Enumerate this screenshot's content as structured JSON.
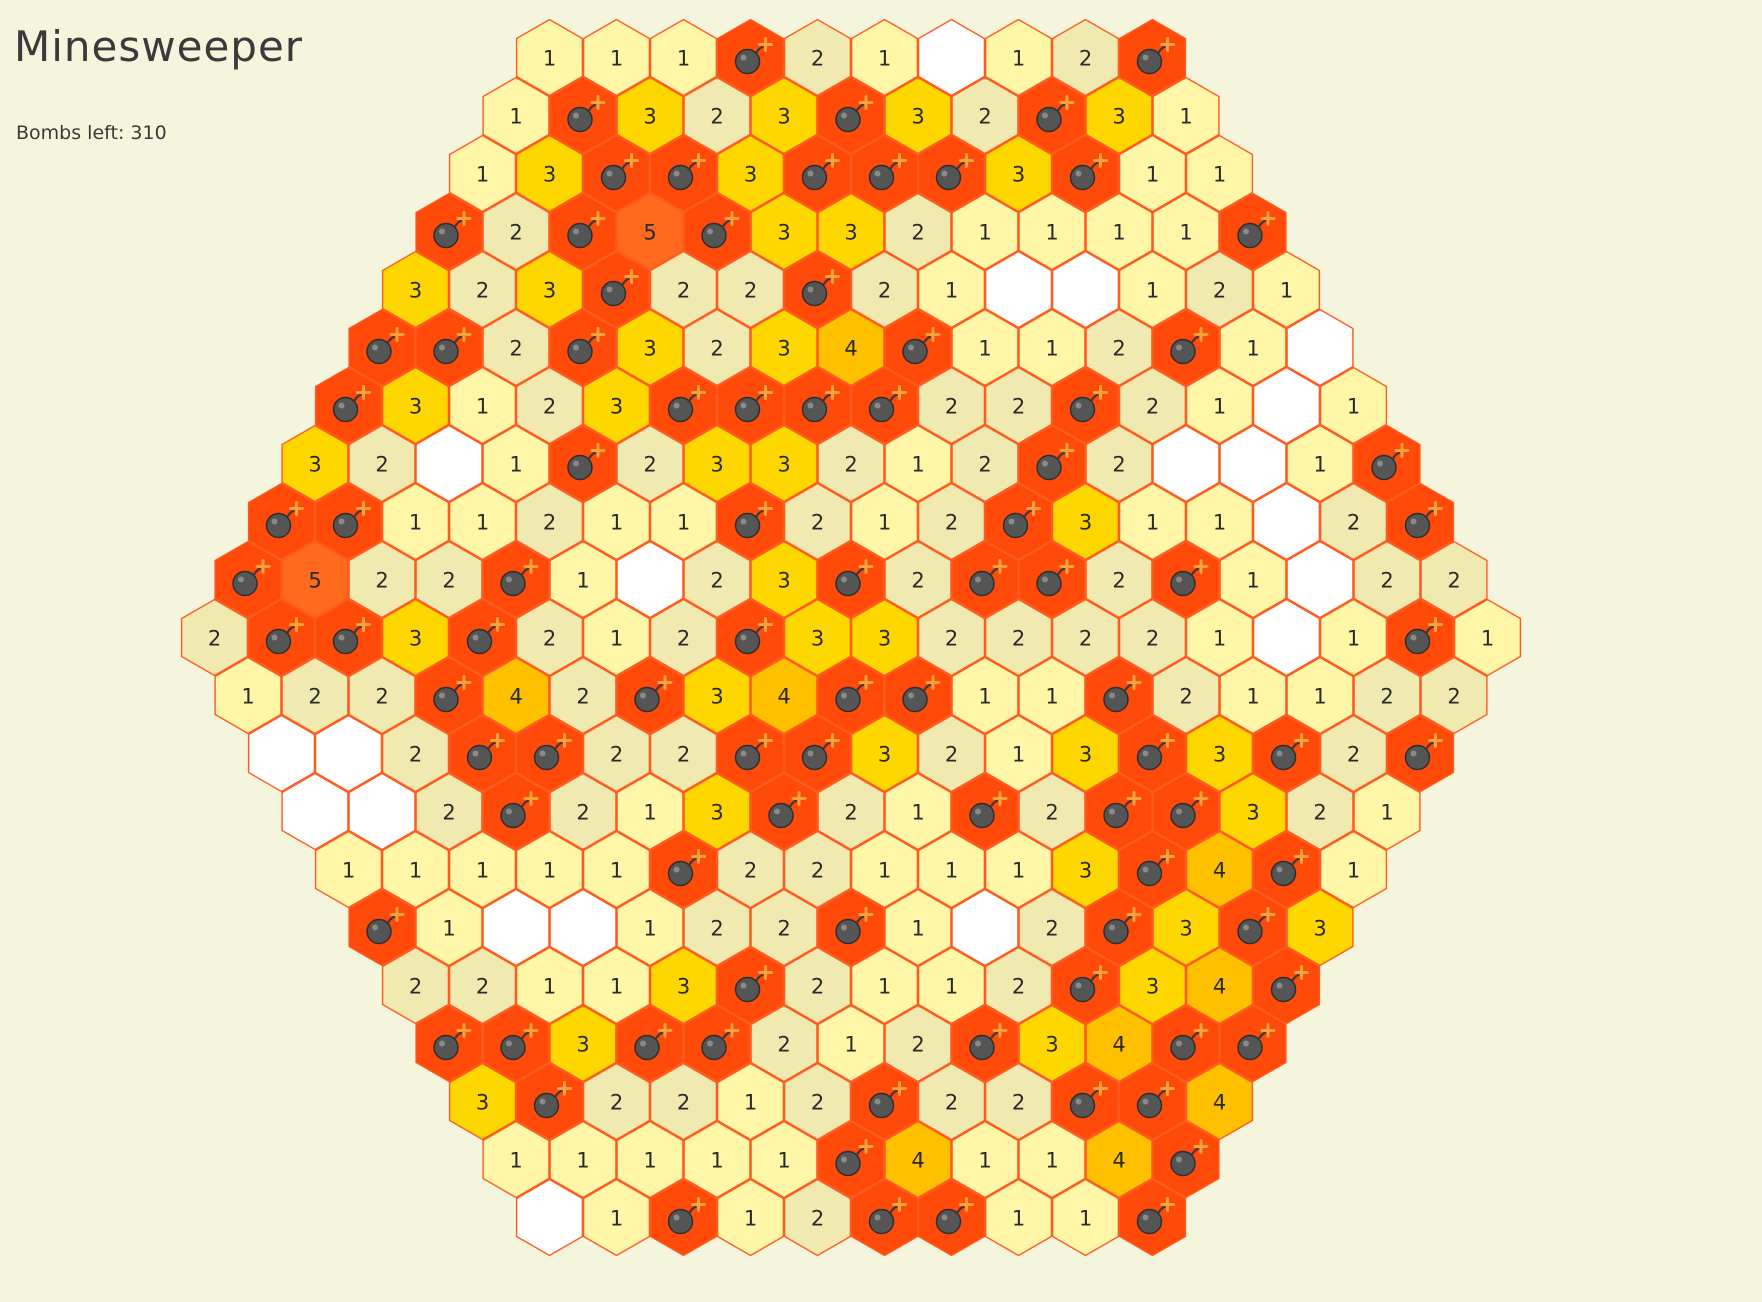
{
  "title": "Minesweeper",
  "status": {
    "bombs_left_label": "Bombs left:",
    "bombs_left_value": "310"
  },
  "colors": {
    "background": "#f5f4dc",
    "mine": "#ff4a0a",
    "border": "#ff5a1f",
    "empty": "#ffffff",
    "n1": "#fff6a8",
    "n2": "#f1eab0",
    "n3": "#ffd700",
    "n4": "#ffc000",
    "n5": "#ff6a1f",
    "bomb_body": "#555555"
  },
  "board": {
    "rows": [
      {
        "start": 9,
        "cells": [
          "1",
          "1",
          "1",
          "M",
          "2",
          "1",
          "0",
          "1",
          "2",
          "M"
        ]
      },
      {
        "start": 8,
        "cells": [
          "1",
          "M",
          "3",
          "2",
          "3",
          "M",
          "3",
          "2",
          "M",
          "3",
          "1"
        ]
      },
      {
        "start": 7,
        "cells": [
          "1",
          "3",
          "M",
          "M",
          "3",
          "M",
          "M",
          "M",
          "3",
          "M",
          "1",
          "1"
        ]
      },
      {
        "start": 6,
        "cells": [
          "M",
          "2",
          "M",
          "5",
          "M",
          "3",
          "3",
          "2",
          "1",
          "1",
          "1",
          "1",
          "M"
        ]
      },
      {
        "start": 5,
        "cells": [
          "3",
          "2",
          "3",
          "M",
          "2",
          "2",
          "M",
          "2",
          "1",
          "0",
          "0",
          "1",
          "2",
          "1"
        ]
      },
      {
        "start": 4,
        "cells": [
          "M",
          "M",
          "2",
          "M",
          "3",
          "2",
          "3",
          "4",
          "M",
          "1",
          "1",
          "2",
          "M",
          "1",
          "0"
        ]
      },
      {
        "start": 3,
        "cells": [
          "M",
          "3",
          "1",
          "2",
          "3",
          "M",
          "M",
          "M",
          "M",
          "2",
          "2",
          "M",
          "2",
          "1",
          "0",
          "1"
        ]
      },
      {
        "start": 2,
        "cells": [
          "3",
          "2",
          "0",
          "1",
          "M",
          "2",
          "3",
          "3",
          "2",
          "1",
          "2",
          "M",
          "2",
          "0",
          "0",
          "1",
          "M"
        ]
      },
      {
        "start": 1,
        "cells": [
          "M",
          "M",
          "1",
          "1",
          "2",
          "1",
          "1",
          "M",
          "2",
          "1",
          "2",
          "M",
          "3",
          "1",
          "1",
          "0",
          "2",
          "M"
        ]
      },
      {
        "start": 0,
        "cells": [
          "M",
          "5",
          "2",
          "2",
          "M",
          "1",
          "0",
          "2",
          "3",
          "M",
          "2",
          "M",
          "M",
          "2",
          "M",
          "1",
          "0",
          "2",
          "2"
        ]
      },
      {
        "start": -1,
        "cells": [
          "2",
          "M",
          "M",
          "3",
          "M",
          "2",
          "1",
          "2",
          "M",
          "3",
          "3",
          "2",
          "2",
          "2",
          "2",
          "1",
          "0",
          "1",
          "M",
          "1"
        ]
      },
      {
        "start": 0,
        "cells": [
          "1",
          "2",
          "2",
          "M",
          "4",
          "2",
          "M",
          "3",
          "4",
          "M",
          "M",
          "1",
          "1",
          "M",
          "2",
          "1",
          "1",
          "2",
          "2"
        ]
      },
      {
        "start": 1,
        "cells": [
          "0",
          "0",
          "2",
          "M",
          "M",
          "2",
          "2",
          "M",
          "M",
          "3",
          "2",
          "1",
          "3",
          "M",
          "3",
          "M",
          "2",
          "M"
        ]
      },
      {
        "start": 2,
        "cells": [
          "0",
          "0",
          "2",
          "M",
          "2",
          "1",
          "3",
          "M",
          "2",
          "1",
          "M",
          "2",
          "M",
          "M",
          "3",
          "2",
          "1"
        ]
      },
      {
        "start": 3,
        "cells": [
          "1",
          "1",
          "1",
          "1",
          "1",
          "M",
          "2",
          "2",
          "1",
          "1",
          "1",
          "3",
          "M",
          "4",
          "M",
          "1"
        ]
      },
      {
        "start": 4,
        "cells": [
          "M",
          "1",
          "0",
          "0",
          "1",
          "2",
          "2",
          "M",
          "1",
          "0",
          "2",
          "M",
          "3",
          "M",
          "3"
        ]
      },
      {
        "start": 5,
        "cells": [
          "2",
          "2",
          "1",
          "1",
          "3",
          "M",
          "2",
          "1",
          "1",
          "2",
          "M",
          "3",
          "4",
          "M"
        ]
      },
      {
        "start": 6,
        "cells": [
          "M",
          "M",
          "3",
          "M",
          "M",
          "2",
          "1",
          "2",
          "M",
          "3",
          "4",
          "M",
          "M"
        ]
      },
      {
        "start": 7,
        "cells": [
          "3",
          "M",
          "2",
          "2",
          "1",
          "2",
          "M",
          "2",
          "2",
          "M",
          "M",
          "4"
        ]
      },
      {
        "start": 8,
        "cells": [
          "1",
          "1",
          "1",
          "1",
          "1",
          "M",
          "4",
          "1",
          "1",
          "4",
          "M"
        ]
      },
      {
        "start": 9,
        "cells": [
          "0",
          "1",
          "M",
          "1",
          "2",
          "M",
          "M",
          "1",
          "1",
          "M"
        ]
      }
    ]
  }
}
